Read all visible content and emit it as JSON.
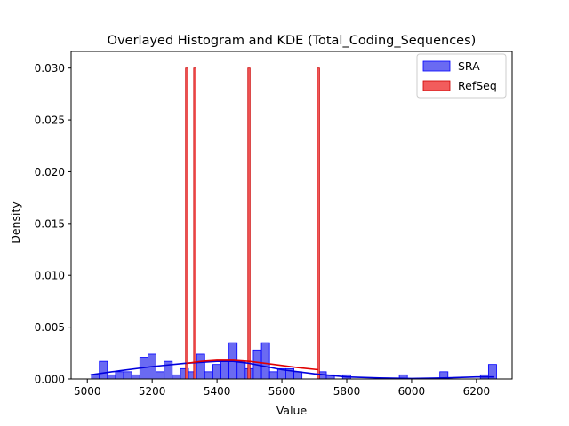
{
  "chart_data": {
    "type": "histogram",
    "title": "Overlayed Histogram and KDE (Total_Coding_Sequences)",
    "xlabel": "Value",
    "ylabel": "Density",
    "xlim": [
      4950,
      6310
    ],
    "ylim": [
      0,
      0.0316
    ],
    "xticks": [
      5000,
      5200,
      5400,
      5600,
      5800,
      6000,
      6200
    ],
    "yticks": [
      0.0,
      0.005,
      0.01,
      0.015,
      0.02,
      0.025,
      0.03
    ],
    "ytick_labels": [
      "0.000",
      "0.005",
      "0.010",
      "0.015",
      "0.020",
      "0.025",
      "0.030"
    ],
    "legend_position": "top-right",
    "grid": false,
    "series": [
      {
        "name": "SRA",
        "color": "#0000ff",
        "fill": "#6a6af2",
        "kde_color": "#0000dd",
        "bins": [
          [
            5013,
            5037,
            0.0004
          ],
          [
            5037,
            5062,
            0.0017
          ],
          [
            5062,
            5087,
            0.0004
          ],
          [
            5087,
            5112,
            0.0007
          ],
          [
            5112,
            5137,
            0.0007
          ],
          [
            5137,
            5162,
            0.0004
          ],
          [
            5162,
            5187,
            0.0021
          ],
          [
            5187,
            5212,
            0.0024
          ],
          [
            5212,
            5237,
            0.0007
          ],
          [
            5237,
            5262,
            0.0017
          ],
          [
            5262,
            5287,
            0.0004
          ],
          [
            5287,
            5312,
            0.001
          ],
          [
            5312,
            5337,
            0.0007
          ],
          [
            5337,
            5362,
            0.0024
          ],
          [
            5362,
            5387,
            0.0007
          ],
          [
            5387,
            5412,
            0.0014
          ],
          [
            5412,
            5437,
            0.0017
          ],
          [
            5437,
            5462,
            0.0035
          ],
          [
            5462,
            5487,
            0.0017
          ],
          [
            5487,
            5512,
            0.001
          ],
          [
            5512,
            5537,
            0.0028
          ],
          [
            5537,
            5562,
            0.0035
          ],
          [
            5562,
            5587,
            0.0007
          ],
          [
            5587,
            5612,
            0.001
          ],
          [
            5612,
            5637,
            0.001
          ],
          [
            5637,
            5662,
            0.0007
          ],
          [
            5712,
            5737,
            0.0007
          ],
          [
            5737,
            5762,
            0.0004
          ],
          [
            5787,
            5812,
            0.0004
          ],
          [
            5962,
            5987,
            0.0004
          ],
          [
            6087,
            6112,
            0.0007
          ],
          [
            6212,
            6237,
            0.0004
          ],
          [
            6237,
            6262,
            0.0014
          ]
        ],
        "kde": {
          "x": [
            5010,
            5100,
            5200,
            5300,
            5400,
            5450,
            5500,
            5600,
            5700,
            5800,
            5900,
            6000,
            6100,
            6200,
            6255
          ],
          "y": [
            0.0004,
            0.0008,
            0.0012,
            0.0015,
            0.0017,
            0.0017,
            0.0015,
            0.0009,
            0.0005,
            0.0002,
            0.0001,
            5e-05,
            0.0001,
            0.0002,
            0.0002
          ]
        }
      },
      {
        "name": "RefSeq",
        "color": "#cc0000",
        "fill": "#f25c5c",
        "kde_color": "#e00000",
        "bins": [
          [
            5303,
            5310,
            0.03
          ],
          [
            5328,
            5335,
            0.03
          ],
          [
            5495,
            5502,
            0.03
          ],
          [
            5709,
            5716,
            0.03
          ]
        ],
        "kde": {
          "x": [
            5305,
            5350,
            5400,
            5450,
            5500,
            5550,
            5600,
            5650,
            5712
          ],
          "y": [
            0.0015,
            0.0017,
            0.0018,
            0.0018,
            0.0017,
            0.0015,
            0.0013,
            0.0011,
            0.0009
          ]
        }
      }
    ]
  }
}
